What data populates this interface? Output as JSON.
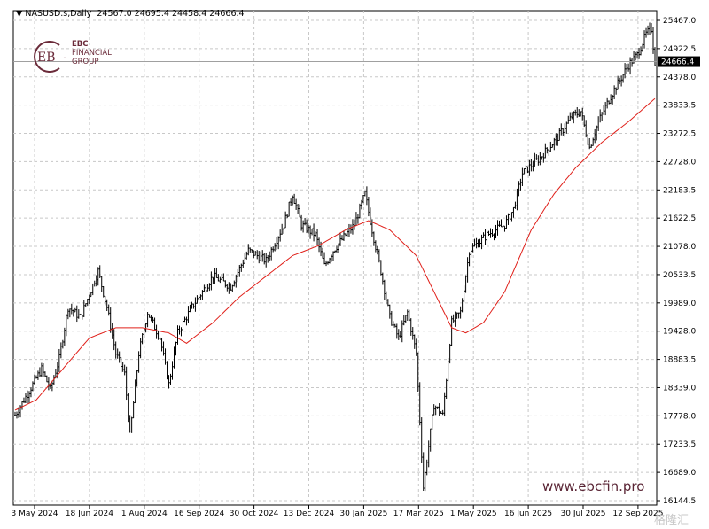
{
  "header": {
    "arrow_icon": "triangle-down-icon",
    "symbol": "NASUSD.s,Daily",
    "ohlc": "24567.0 24695.4 24458.4 24666.4"
  },
  "logo": {
    "line1": "EBC",
    "line2": "FINANCIAL",
    "line3": "GROUP",
    "mark": "EB"
  },
  "website": "www.ebcfin.pro",
  "watermark": "格隆汇",
  "colors": {
    "bars": "#000000",
    "ma": "#e0201a",
    "grid": "#c8c8c8",
    "brand": "#6b2b3a"
  },
  "chart_data": {
    "type": "ohlc",
    "title": "NASUSD.s,Daily",
    "current_price": "24666.4",
    "current_value": 24666.4,
    "ylim": [
      16144.5,
      25467.0
    ],
    "y_ticks": [
      "25467.0",
      "24922.5",
      "24378.0",
      "23833.5",
      "23272.5",
      "22728.0",
      "22183.5",
      "21622.5",
      "21078.0",
      "20533.5",
      "19989.0",
      "19428.0",
      "18883.5",
      "18339.0",
      "17778.0",
      "17233.5",
      "16689.0",
      "16144.5"
    ],
    "x_ticks": [
      "3 May 2024",
      "18 Jun 2024",
      "1 Aug 2024",
      "16 Sep 2024",
      "30 Oct 2024",
      "13 Dec 2024",
      "30 Jan 2025",
      "17 Mar 2025",
      "1 May 2025",
      "16 Jun 2025",
      "30 Jul 2025",
      "12 Sep 2025"
    ],
    "bar_count": 363,
    "price_keypoints": [
      [
        0,
        17800
      ],
      [
        5,
        18100
      ],
      [
        15,
        18700
      ],
      [
        20,
        18300
      ],
      [
        25,
        18900
      ],
      [
        30,
        19900
      ],
      [
        37,
        19700
      ],
      [
        47,
        20600
      ],
      [
        52,
        19900
      ],
      [
        57,
        19000
      ],
      [
        62,
        18600
      ],
      [
        65,
        17400
      ],
      [
        70,
        19000
      ],
      [
        75,
        19800
      ],
      [
        82,
        19300
      ],
      [
        87,
        18400
      ],
      [
        92,
        19400
      ],
      [
        100,
        19900
      ],
      [
        112,
        20500
      ],
      [
        122,
        20300
      ],
      [
        132,
        21000
      ],
      [
        142,
        20800
      ],
      [
        152,
        21500
      ],
      [
        157,
        22100
      ],
      [
        162,
        21500
      ],
      [
        170,
        21300
      ],
      [
        175,
        20700
      ],
      [
        180,
        21000
      ],
      [
        187,
        21300
      ],
      [
        192,
        21500
      ],
      [
        198,
        22100
      ],
      [
        202,
        21400
      ],
      [
        207,
        20600
      ],
      [
        212,
        19700
      ],
      [
        217,
        19300
      ],
      [
        222,
        19800
      ],
      [
        227,
        19000
      ],
      [
        231,
        16400
      ],
      [
        237,
        18000
      ],
      [
        242,
        17800
      ],
      [
        247,
        19600
      ],
      [
        252,
        19800
      ],
      [
        257,
        21000
      ],
      [
        267,
        21300
      ],
      [
        277,
        21500
      ],
      [
        282,
        21800
      ],
      [
        287,
        22500
      ],
      [
        297,
        22800
      ],
      [
        307,
        23200
      ],
      [
        315,
        23600
      ],
      [
        320,
        23700
      ],
      [
        325,
        23000
      ],
      [
        330,
        23500
      ],
      [
        337,
        24000
      ],
      [
        347,
        24600
      ],
      [
        352,
        24800
      ],
      [
        357,
        25200
      ],
      [
        360,
        25300
      ],
      [
        362,
        24650
      ]
    ],
    "ma_keypoints": [
      [
        0,
        17900
      ],
      [
        12,
        18100
      ],
      [
        27,
        18700
      ],
      [
        42,
        19300
      ],
      [
        57,
        19500
      ],
      [
        72,
        19500
      ],
      [
        87,
        19400
      ],
      [
        97,
        19200
      ],
      [
        112,
        19600
      ],
      [
        127,
        20100
      ],
      [
        142,
        20500
      ],
      [
        157,
        20900
      ],
      [
        172,
        21100
      ],
      [
        187,
        21400
      ],
      [
        200,
        21580
      ],
      [
        212,
        21400
      ],
      [
        227,
        20900
      ],
      [
        237,
        20200
      ],
      [
        247,
        19500
      ],
      [
        255,
        19400
      ],
      [
        265,
        19600
      ],
      [
        277,
        20200
      ],
      [
        292,
        21400
      ],
      [
        305,
        22100
      ],
      [
        317,
        22600
      ],
      [
        332,
        23100
      ],
      [
        347,
        23500
      ],
      [
        362,
        23950
      ]
    ]
  }
}
